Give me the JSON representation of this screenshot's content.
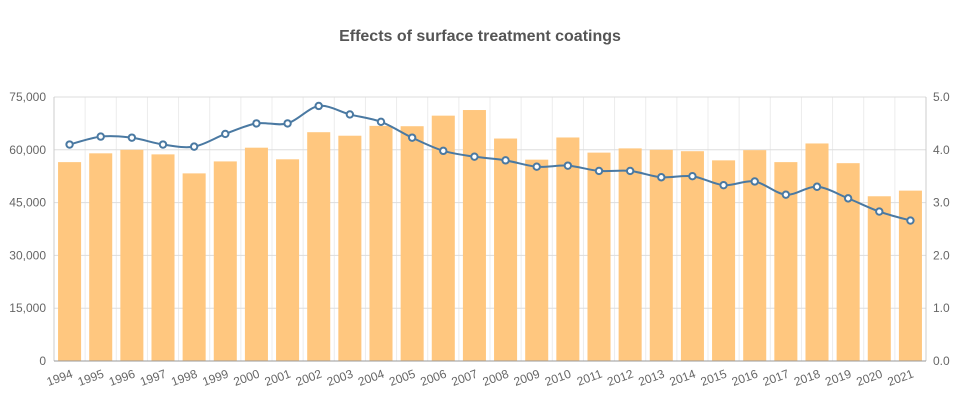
{
  "chart_data": {
    "type": "bar",
    "title": "Effects of surface treatment coatings",
    "categories": [
      "1994",
      "1995",
      "1996",
      "1997",
      "1998",
      "1999",
      "2000",
      "2001",
      "2002",
      "2003",
      "2004",
      "2005",
      "2006",
      "2007",
      "2008",
      "2009",
      "2010",
      "2011",
      "2012",
      "2013",
      "2014",
      "2015",
      "2016",
      "2017",
      "2018",
      "2019",
      "2020",
      "2021"
    ],
    "series": [
      {
        "type": "bar",
        "axis": "left",
        "color": "#ffc77f",
        "values": [
          56500,
          59000,
          60000,
          58700,
          53300,
          56700,
          60600,
          57300,
          65000,
          64000,
          66800,
          66700,
          69700,
          71300,
          63200,
          57200,
          63500,
          59200,
          60400,
          60000,
          59600,
          57000,
          59900,
          56500,
          61800,
          56200,
          46800,
          48400
        ]
      },
      {
        "type": "line",
        "axis": "right",
        "color": "#4a79a2",
        "values": [
          4.1,
          4.25,
          4.23,
          4.1,
          4.06,
          4.3,
          4.5,
          4.5,
          4.83,
          4.67,
          4.53,
          4.23,
          3.98,
          3.87,
          3.8,
          3.68,
          3.7,
          3.6,
          3.6,
          3.48,
          3.5,
          3.33,
          3.4,
          3.15,
          3.3,
          3.08,
          2.83,
          2.66
        ]
      }
    ],
    "y_left": {
      "ylim": [
        0,
        75000
      ],
      "ticks": [
        "0",
        "15,000",
        "30,000",
        "45,000",
        "60,000",
        "75,000"
      ]
    },
    "y_right": {
      "ylim": [
        0,
        5
      ],
      "ticks": [
        "0.0",
        "1.0",
        "2.0",
        "3.0",
        "4.0",
        "5.0"
      ]
    },
    "grid": true,
    "legend": "none"
  }
}
